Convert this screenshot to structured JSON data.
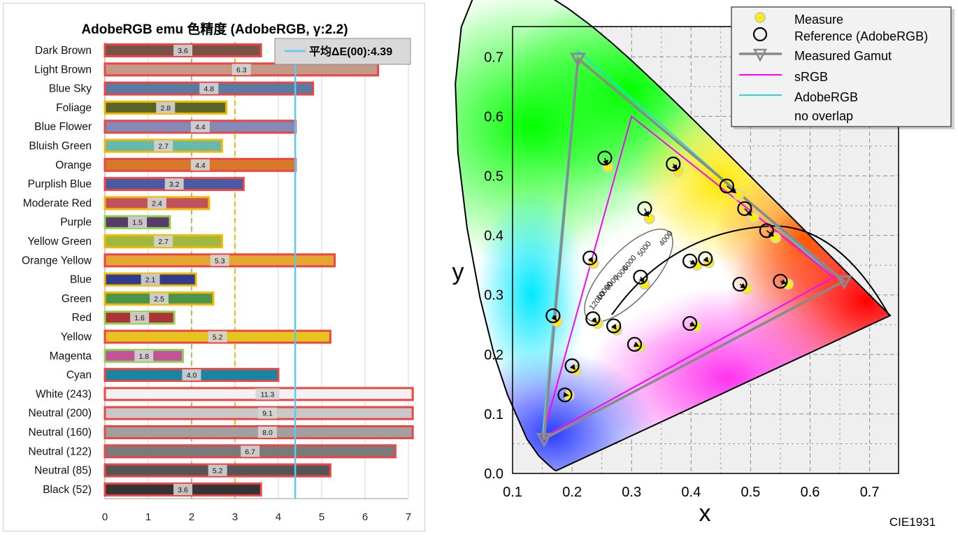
{
  "bar_chart": {
    "title": "AdobeRGB emu 色精度 (AdobeRGB, γ:2.2)",
    "legend_label": "平均ΔE(00):4.39",
    "x_ticks": [
      "0",
      "1",
      "2",
      "3",
      "4",
      "5",
      "6",
      "7"
    ]
  },
  "cie_chart": {
    "xlabel": "x",
    "ylabel": "y",
    "caption": "CIE1931",
    "x_ticks": [
      "0.1",
      "0.2",
      "0.3",
      "0.4",
      "0.5",
      "0.6",
      "0.7"
    ],
    "y_ticks": [
      "0.0",
      "0.1",
      "0.2",
      "0.3",
      "0.4",
      "0.5",
      "0.6",
      "0.7"
    ],
    "cct_labels": [
      "4000",
      "5000",
      "6000",
      "7000",
      "8000",
      "10000",
      "12000"
    ],
    "legend": [
      "Measure",
      "Reference (AdobeRGB)",
      "Measured Gamut",
      "sRGB",
      "AdobeRGB",
      "no overlap"
    ]
  },
  "chart_data": [
    {
      "type": "bar",
      "orientation": "horizontal",
      "title": "AdobeRGB emu 色精度 (AdobeRGB, γ:2.2)",
      "xlim": [
        0,
        7
      ],
      "grid": true,
      "reference_lines": [
        {
          "value": 2,
          "color": "#92d050",
          "style": "dashed"
        },
        {
          "value": 3,
          "color": "#f5b800",
          "style": "dashed"
        },
        {
          "value": 4.39,
          "color": "#5bc8f5",
          "style": "solid",
          "label": "平均ΔE(00):4.39"
        }
      ],
      "legend_placement": "top-right",
      "categories": [
        "Dark Brown",
        "Light Brown",
        "Blue Sky",
        "Foliage",
        "Blue Flower",
        "Bluish Green",
        "Orange",
        "Purplish Blue",
        "Moderate Red",
        "Purple",
        "Yellow Green",
        "Orange Yellow",
        "Blue",
        "Green",
        "Red",
        "Yellow",
        "Magenta",
        "Cyan",
        "White (243)",
        "Neutral (200)",
        "Neutral (160)",
        "Neutral (122)",
        "Neutral (85)",
        "Black (52)"
      ],
      "values": [
        3.6,
        6.3,
        4.8,
        2.8,
        4.4,
        2.7,
        4.4,
        3.2,
        2.4,
        1.5,
        2.7,
        5.3,
        2.1,
        2.5,
        1.6,
        5.2,
        1.8,
        4.0,
        11.3,
        9.1,
        8.0,
        6.7,
        5.2,
        3.6
      ],
      "value_labels": [
        "3.6",
        "6.3",
        "4.8",
        "2.8",
        "4.4",
        "2.7",
        "4.4",
        "3.2",
        "2.4",
        "1.5",
        "2.7",
        "5.3",
        "2.1",
        "2.5",
        "1.6",
        "5.2",
        "1.8",
        "4.0",
        "11.3",
        "9.1",
        "8.0",
        "6.7",
        "5.2",
        "3.6"
      ],
      "fill_colors": [
        "#765346",
        "#c49a86",
        "#5b7aa1",
        "#5b6428",
        "#8688b5",
        "#67b9ad",
        "#d7792a",
        "#4b59a3",
        "#c05260",
        "#5a3a6b",
        "#a1b840",
        "#e3a630",
        "#2f3c8c",
        "#4a944b",
        "#ab3437",
        "#e6c521",
        "#bf5599",
        "#1786a3",
        "#f2f2f2",
        "#c8c8c8",
        "#a0a0a0",
        "#7a7a7a",
        "#555555",
        "#343434"
      ],
      "outline_colors": [
        "#ee4444",
        "#ee4444",
        "#ee4444",
        "#f5b800",
        "#ee4444",
        "#f5b800",
        "#ee4444",
        "#ee4444",
        "#f5b800",
        "#92d050",
        "#f5b800",
        "#ee4444",
        "#f5b800",
        "#f5b800",
        "#92d050",
        "#ee4444",
        "#92d050",
        "#ee4444",
        "#ee4444",
        "#ee4444",
        "#ee4444",
        "#ee4444",
        "#ee4444",
        "#ee4444"
      ]
    },
    {
      "type": "scatter",
      "title": "CIE1931",
      "xlabel": "x",
      "ylabel": "y",
      "xlim": [
        0.1,
        0.75
      ],
      "ylim": [
        0.0,
        0.75
      ],
      "grid": true,
      "legend_placement": "top-right",
      "series": [
        {
          "name": "Measure",
          "points": [
            [
              0.26,
              0.515
            ],
            [
              0.378,
              0.508
            ],
            [
              0.33,
              0.428
            ],
            [
              0.48,
              0.468
            ],
            [
              0.505,
              0.43
            ],
            [
              0.542,
              0.396
            ],
            [
              0.236,
              0.353
            ],
            [
              0.41,
              0.35
            ],
            [
              0.43,
              0.354
            ],
            [
              0.322,
              0.318
            ],
            [
              0.494,
              0.31
            ],
            [
              0.563,
              0.318
            ],
            [
              0.175,
              0.255
            ],
            [
              0.243,
              0.252
            ],
            [
              0.275,
              0.241
            ],
            [
              0.409,
              0.247
            ],
            [
              0.314,
              0.213
            ],
            [
              0.206,
              0.173
            ],
            [
              0.195,
              0.131
            ]
          ]
        },
        {
          "name": "Reference (AdobeRGB)",
          "points": [
            [
              0.255,
              0.53
            ],
            [
              0.37,
              0.52
            ],
            [
              0.322,
              0.445
            ],
            [
              0.46,
              0.483
            ],
            [
              0.49,
              0.445
            ],
            [
              0.527,
              0.408
            ],
            [
              0.23,
              0.362
            ],
            [
              0.398,
              0.357
            ],
            [
              0.424,
              0.361
            ],
            [
              0.315,
              0.33
            ],
            [
              0.482,
              0.318
            ],
            [
              0.55,
              0.323
            ],
            [
              0.168,
              0.265
            ],
            [
              0.235,
              0.26
            ],
            [
              0.27,
              0.248
            ],
            [
              0.398,
              0.252
            ],
            [
              0.305,
              0.217
            ],
            [
              0.2,
              0.181
            ],
            [
              0.188,
              0.132
            ]
          ]
        },
        {
          "name": "Measured Gamut",
          "points": [
            [
              0.21,
              0.697
            ],
            [
              0.657,
              0.323
            ],
            [
              0.153,
              0.058
            ]
          ]
        },
        {
          "name": "sRGB",
          "points": [
            [
              0.3,
              0.6
            ],
            [
              0.64,
              0.33
            ],
            [
              0.15,
              0.06
            ]
          ]
        },
        {
          "name": "AdobeRGB",
          "points": [
            [
              0.21,
              0.71
            ],
            [
              0.64,
              0.33
            ],
            [
              0.15,
              0.06
            ]
          ]
        }
      ]
    }
  ],
  "colors": {
    "grid": "#cfcfcf",
    "average_line": "#5bc8f5",
    "srgb": "#ff00ff",
    "adobergb": "#28d8e8",
    "gamut": "#888888",
    "measure": "#ffee00"
  }
}
